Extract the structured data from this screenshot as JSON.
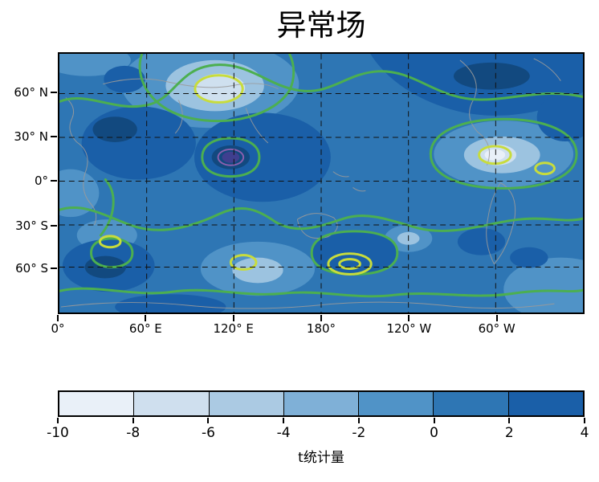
{
  "title": "异常场",
  "map": {
    "y_tick_labels": [
      "60° N",
      "30° N",
      "0°",
      "30° S",
      "60° S"
    ],
    "x_tick_labels": [
      "0°",
      "60° E",
      "120° E",
      "180°",
      "120° W",
      "60° W"
    ]
  },
  "colorbar": {
    "label": "t统计量",
    "tick_labels": [
      "-10",
      "-8",
      "-6",
      "-4",
      "-2",
      "0",
      "2",
      "4"
    ],
    "segment_colors": [
      "#e9f0f8",
      "#cfdfee",
      "#abcae3",
      "#7fb0d7",
      "#5093c7",
      "#2e76b4",
      "#1a5fa8"
    ]
  },
  "chart_data": {
    "type": "heatmap",
    "subtype": "filled-contour-world-map",
    "title": "异常场",
    "colorbar_label": "t统计量",
    "x_tick_labels": [
      "0°",
      "60° E",
      "120° E",
      "180°",
      "120° W",
      "60° W"
    ],
    "y_tick_labels": [
      "60° N",
      "30° N",
      "0°",
      "30° S",
      "60° S"
    ],
    "lon_range": [
      0,
      360
    ],
    "lat_range": [
      -87.5,
      87.5
    ],
    "levels": [
      -10,
      -8,
      -6,
      -4,
      -2,
      0,
      2,
      4
    ],
    "level_colors": [
      "#e9f0f8",
      "#cfdfee",
      "#abcae3",
      "#7fb0d7",
      "#5093c7",
      "#2e76b4",
      "#1a5fa8"
    ],
    "contour_line_colors": {
      "outer_contour_green": "#4caf50",
      "inner_contour_yellow_green": "#c8dc3c",
      "extreme_spot_purple": "#8a5fae"
    },
    "grid": "dashed black at 30° lat / 60° lon",
    "coastlines_color": "#9a9a9a",
    "estimated_grid": {
      "lons": [
        0,
        30,
        60,
        90,
        120,
        150,
        180,
        210,
        240,
        270,
        300,
        330
      ],
      "lats": [
        80,
        60,
        40,
        20,
        0,
        -20,
        -40,
        -60,
        -80
      ],
      "values": [
        [
          1,
          1,
          -1,
          -3,
          -3,
          1,
          1,
          3,
          3,
          3,
          3,
          1
        ],
        [
          1,
          -1,
          -3,
          -5,
          -3,
          1,
          1,
          1,
          3,
          3,
          1,
          1
        ],
        [
          1,
          3,
          1,
          1,
          3,
          1,
          -1,
          1,
          1,
          -1,
          -3,
          1
        ],
        [
          3,
          3,
          1,
          3,
          5,
          3,
          1,
          1,
          -1,
          -3,
          -9,
          -1
        ],
        [
          1,
          1,
          3,
          1,
          3,
          1,
          1,
          3,
          1,
          1,
          -1,
          1
        ],
        [
          1,
          -1,
          1,
          1,
          1,
          3,
          1,
          1,
          3,
          1,
          3,
          1
        ],
        [
          -1,
          -3,
          1,
          3,
          1,
          1,
          -1,
          1,
          1,
          -1,
          1,
          -1
        ],
        [
          1,
          3,
          1,
          1,
          -3,
          -1,
          -5,
          1,
          3,
          1,
          3,
          1
        ],
        [
          3,
          3,
          1,
          1,
          1,
          1,
          1,
          1,
          1,
          3,
          1,
          1
        ]
      ]
    }
  }
}
